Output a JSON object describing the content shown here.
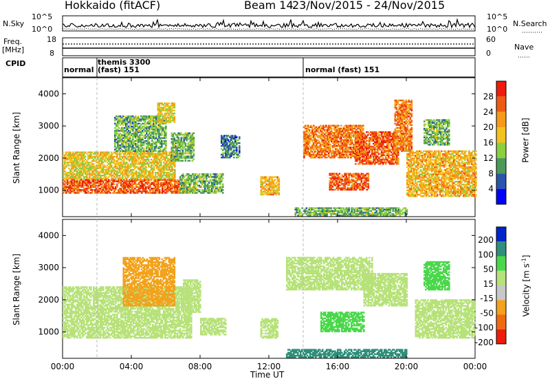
{
  "header": {
    "station": "Hokkaido (fitACF)",
    "beam": "Beam 14",
    "dates": "23/Nov/2015 - 24/Nov/2015"
  },
  "noise_panel": {
    "left_label": "N.Sky",
    "left_ticks": [
      "10^5",
      "10^0"
    ],
    "right_label": "N.Search",
    "right_ticks": [
      "10^5",
      "10^0"
    ]
  },
  "freq_panel": {
    "left_label_1": "Freq.",
    "left_label_2": "[MHz]",
    "left_ticks": [
      "18",
      "8"
    ],
    "right_label": "Nave",
    "right_ticks": [
      "60",
      "0"
    ]
  },
  "cpid_panel": {
    "label": "CPID",
    "segments": [
      {
        "start_hour": 0,
        "text": "normal"
      },
      {
        "start_hour": 2,
        "text": "themis 3300"
      },
      {
        "start_hour": 2,
        "text": "(fast) 151"
      },
      {
        "start_hour": 14,
        "text": "normal (fast) 151"
      }
    ]
  },
  "colors": {
    "power_scale": [
      "#0000ff",
      "#2b55aa",
      "#4c9a5a",
      "#8ccf3f",
      "#f2c21e",
      "#f59a1a",
      "#ee5a12",
      "#ee1c0c"
    ],
    "velocity_scale": [
      "#ee1c0c",
      "#f06a12",
      "#f2a21c",
      "#c8c8c8",
      "#b7e27a",
      "#4ad84a",
      "#2f8f7a",
      "#0024cc"
    ]
  },
  "chart_data": [
    {
      "type": "heatmap",
      "name": "power",
      "ylabel": "Slant Range [km]",
      "xlabel": "Time UT",
      "xlim": [
        0,
        24
      ],
      "ylim": [
        180,
        4500
      ],
      "xticks": [
        "00:00",
        "04:00",
        "08:00",
        "12:00",
        "16:00",
        "20:00",
        "00:00"
      ],
      "yticks": [
        1000,
        2000,
        3000,
        4000
      ],
      "colorbar": {
        "label": "Power [dB]",
        "ticks": [
          4,
          8,
          12,
          16,
          20,
          24,
          28
        ],
        "range": [
          0,
          32
        ]
      },
      "regions": [
        {
          "t0": 0.0,
          "t1": 7.2,
          "r0": 900,
          "r1": 1350,
          "value": 26
        },
        {
          "t0": 0.0,
          "t1": 6.5,
          "r0": 1350,
          "r1": 2200,
          "value": 18
        },
        {
          "t0": 3.0,
          "t1": 6.0,
          "r0": 2200,
          "r1": 3300,
          "value": 12
        },
        {
          "t0": 5.5,
          "t1": 6.5,
          "r0": 3100,
          "r1": 3700,
          "value": 18
        },
        {
          "t0": 6.3,
          "t1": 7.6,
          "r0": 1900,
          "r1": 2800,
          "value": 12
        },
        {
          "t0": 6.8,
          "t1": 9.3,
          "r0": 900,
          "r1": 1500,
          "value": 12
        },
        {
          "t0": 9.2,
          "t1": 10.3,
          "r0": 2000,
          "r1": 2700,
          "value": 8
        },
        {
          "t0": 11.5,
          "t1": 12.6,
          "r0": 850,
          "r1": 1400,
          "value": 20
        },
        {
          "t0": 14.0,
          "t1": 17.5,
          "r0": 2000,
          "r1": 3000,
          "value": 24
        },
        {
          "t0": 15.5,
          "t1": 17.8,
          "r0": 1000,
          "r1": 1500,
          "value": 26
        },
        {
          "t0": 17.0,
          "t1": 19.5,
          "r0": 1800,
          "r1": 2800,
          "value": 26
        },
        {
          "t0": 19.3,
          "t1": 20.3,
          "r0": 2200,
          "r1": 3800,
          "value": 24
        },
        {
          "t0": 20.0,
          "t1": 24.0,
          "r0": 800,
          "r1": 2200,
          "value": 20
        },
        {
          "t0": 21.0,
          "t1": 22.5,
          "r0": 2400,
          "r1": 3200,
          "value": 12
        },
        {
          "t0": 13.5,
          "t1": 20.0,
          "r0": 200,
          "r1": 450,
          "value": 12
        }
      ]
    },
    {
      "type": "heatmap",
      "name": "velocity",
      "ylabel": "Slant Range [km]",
      "xlabel": "Time UT",
      "xlim": [
        0,
        24
      ],
      "ylim": [
        180,
        4500
      ],
      "xticks": [
        "00:00",
        "04:00",
        "08:00",
        "12:00",
        "16:00",
        "20:00",
        "00:00"
      ],
      "yticks": [
        1000,
        2000,
        3000,
        4000
      ],
      "colorbar": {
        "label": "Velocity [m s^-1]",
        "ticks": [
          200,
          100,
          50,
          15,
          -15,
          -50,
          -100,
          -200
        ]
      },
      "regions": [
        {
          "t0": 0.0,
          "t1": 7.5,
          "r0": 800,
          "r1": 2400,
          "value": 0
        },
        {
          "t0": 3.5,
          "t1": 6.5,
          "r0": 1800,
          "r1": 3300,
          "value": -60
        },
        {
          "t0": 7.0,
          "t1": 8.0,
          "r0": 1600,
          "r1": 2600,
          "value": 0
        },
        {
          "t0": 8.0,
          "t1": 9.5,
          "r0": 900,
          "r1": 1400,
          "value": 0
        },
        {
          "t0": 11.5,
          "t1": 12.5,
          "r0": 800,
          "r1": 1400,
          "value": 0
        },
        {
          "t0": 13.0,
          "t1": 18.0,
          "r0": 2300,
          "r1": 3300,
          "value": 0
        },
        {
          "t0": 15.0,
          "t1": 17.5,
          "r0": 1000,
          "r1": 1600,
          "value": 40
        },
        {
          "t0": 17.5,
          "t1": 20.0,
          "r0": 1800,
          "r1": 2800,
          "value": 0
        },
        {
          "t0": 20.5,
          "t1": 24.0,
          "r0": 800,
          "r1": 2000,
          "value": 0
        },
        {
          "t0": 21.0,
          "t1": 22.5,
          "r0": 2300,
          "r1": 3200,
          "value": 40
        },
        {
          "t0": 13.0,
          "t1": 20.0,
          "r0": 200,
          "r1": 450,
          "value": 80
        }
      ]
    }
  ]
}
